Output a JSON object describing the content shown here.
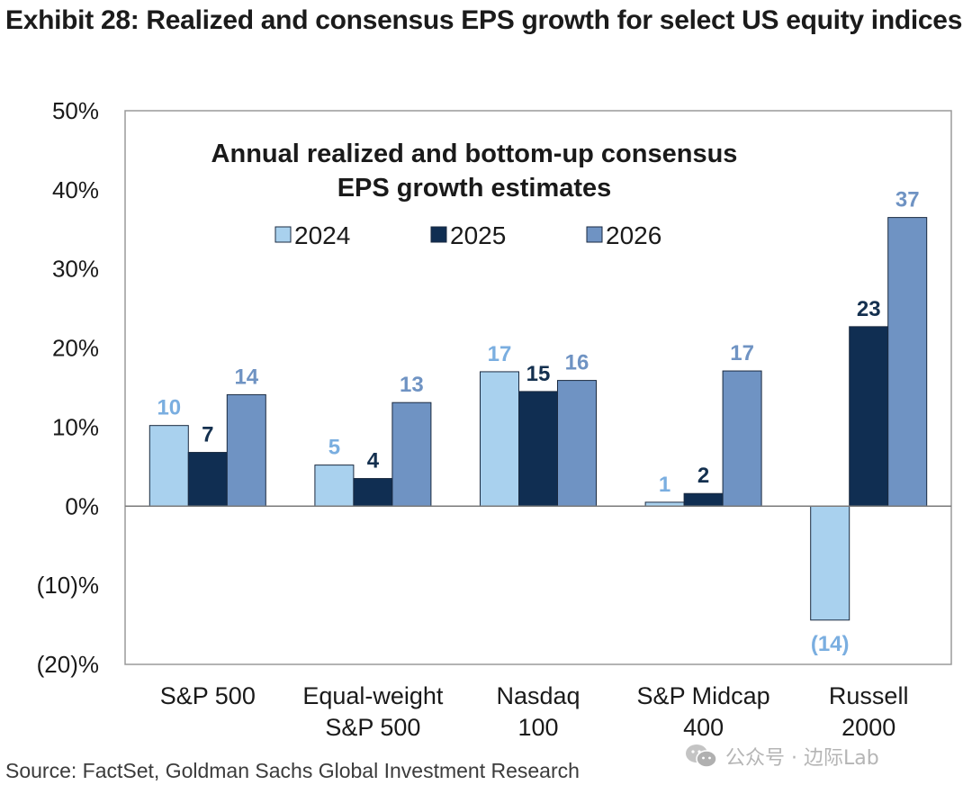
{
  "header": {
    "title": "Exhibit 28: Realized and consensus EPS growth for select US equity indices"
  },
  "footer": {
    "source": "Source: FactSet, Goldman Sachs Global Investment Research",
    "watermark": "公众号 · 边际Lab"
  },
  "colors": {
    "2024": "#a9d1ee",
    "2025": "#102e52",
    "2026": "#6f93c3",
    "label2024": "#7aaee0",
    "label2025": "#14304f",
    "label2026": "#6f93c3"
  },
  "chart_data": {
    "type": "bar",
    "title": "Annual realized and bottom-up consensus EPS growth estimates",
    "title_lines": [
      "Annual realized and bottom-up consensus",
      "EPS growth estimates"
    ],
    "categories": [
      [
        "S&P 500"
      ],
      [
        "Equal-weight",
        "S&P 500"
      ],
      [
        "Nasdaq",
        "100"
      ],
      [
        "S&P Midcap",
        "400"
      ],
      [
        "Russell",
        "2000"
      ]
    ],
    "series": [
      {
        "name": "2024",
        "values": [
          10.2,
          5.2,
          17.0,
          0.5,
          -14.4
        ],
        "labels": [
          "10",
          "5",
          "17",
          "1",
          "(14)"
        ]
      },
      {
        "name": "2025",
        "values": [
          6.8,
          3.5,
          14.5,
          1.6,
          22.7
        ],
        "labels": [
          "7",
          "4",
          "15",
          "2",
          "23"
        ]
      },
      {
        "name": "2026",
        "values": [
          14.1,
          13.1,
          15.9,
          17.1,
          36.5
        ],
        "labels": [
          "14",
          "13",
          "16",
          "17",
          "37"
        ]
      }
    ],
    "ylim": [
      -20,
      50
    ],
    "yticks": [
      50,
      40,
      30,
      20,
      10,
      0,
      -10,
      -20
    ],
    "ytick_labels": [
      "50%",
      "40%",
      "30%",
      "20%",
      "10%",
      "0%",
      "(10)%",
      "(20)%"
    ],
    "legend_position": "top-center",
    "grid": false,
    "xlabel": "",
    "ylabel": ""
  }
}
